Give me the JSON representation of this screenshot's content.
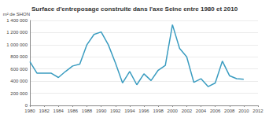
{
  "chart_data": {
    "type": "line",
    "title": "Surface d'entreposage construite dans l'axe Seine entre 1980 et 2010",
    "y_label": "m² de SHON",
    "x": [
      1980,
      1981,
      1982,
      1983,
      1984,
      1985,
      1986,
      1987,
      1988,
      1989,
      1990,
      1991,
      1992,
      1993,
      1994,
      1995,
      1996,
      1997,
      1998,
      1999,
      2000,
      2001,
      2002,
      2003,
      2004,
      2005,
      2006,
      2007,
      2008,
      2009,
      2010
    ],
    "values": [
      720000,
      530000,
      530000,
      530000,
      460000,
      560000,
      650000,
      680000,
      1000000,
      1170000,
      1210000,
      1000000,
      700000,
      370000,
      560000,
      340000,
      520000,
      410000,
      580000,
      660000,
      1330000,
      940000,
      800000,
      380000,
      440000,
      310000,
      370000,
      730000,
      490000,
      440000,
      430000
    ],
    "color": "#3a9cc0",
    "xlim": [
      1980,
      2012
    ],
    "xticks": [
      1980,
      1982,
      1984,
      1986,
      1988,
      1990,
      1992,
      1994,
      1996,
      1998,
      2000,
      2002,
      2004,
      2006,
      2008,
      2010,
      2012
    ],
    "ylim": [
      0,
      1400000
    ],
    "yticks": [
      0,
      {
        "value": 200000,
        "label": "200 000"
      },
      {
        "value": 400000,
        "label": "400 000"
      },
      {
        "value": 600000,
        "label": "600 000"
      },
      {
        "value": 800000,
        "label": "800 000"
      },
      {
        "value": 1000000,
        "label": "1 000 000"
      },
      {
        "value": 1200000,
        "label": "1 200 000"
      },
      {
        "value": 1400000,
        "label": "1 400 000"
      }
    ],
    "grid": true
  }
}
